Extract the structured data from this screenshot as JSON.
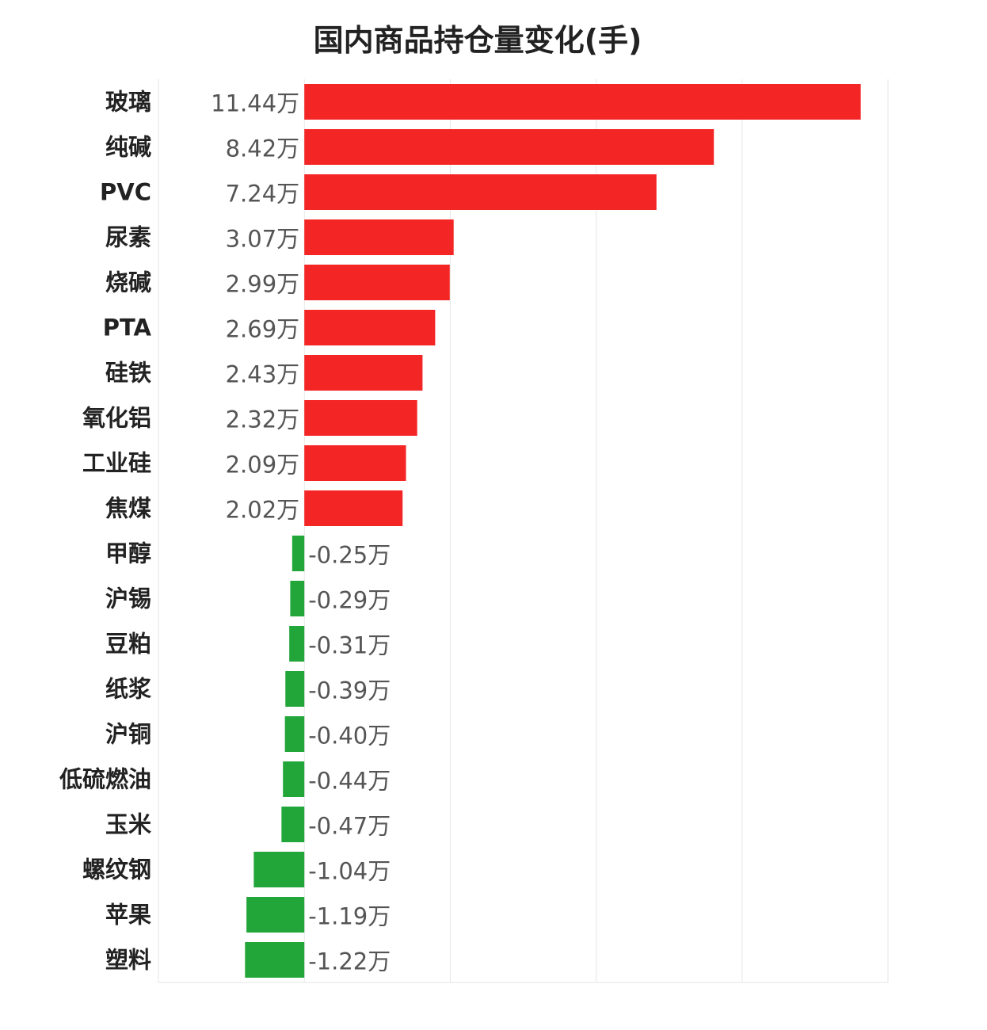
{
  "chart_data": {
    "type": "bar",
    "orientation": "horizontal",
    "title": "国内商品持仓量变化(手)",
    "xlabel": "",
    "ylabel": "",
    "categories": [
      "玻璃",
      "纯碱",
      "PVC",
      "尿素",
      "烧碱",
      "PTA",
      "硅铁",
      "氧化铝",
      "工业硅",
      "焦煤",
      "甲醇",
      "沪锡",
      "豆粕",
      "纸浆",
      "沪铜",
      "低硫燃油",
      "玉米",
      "螺纹钢",
      "苹果",
      "塑料"
    ],
    "values": [
      11.44,
      8.42,
      7.24,
      3.07,
      2.99,
      2.69,
      2.43,
      2.32,
      2.09,
      2.02,
      -0.25,
      -0.29,
      -0.31,
      -0.39,
      -0.4,
      -0.44,
      -0.47,
      -1.04,
      -1.19,
      -1.22
    ],
    "value_labels": [
      "11.44万",
      "8.42万",
      "7.24万",
      "3.07万",
      "2.99万",
      "2.69万",
      "2.43万",
      "2.32万",
      "2.09万",
      "2.02万",
      "-0.25万",
      "-0.29万",
      "-0.31万",
      "-0.39万",
      "-0.40万",
      "-0.44万",
      "-0.47万",
      "-1.04万",
      "-1.19万",
      "-1.22万"
    ],
    "value_unit": "万",
    "xlim": [
      -3,
      12
    ],
    "grid": true,
    "legend": "none",
    "colors": {
      "positive": "#f42525",
      "negative": "#22a639"
    }
  }
}
